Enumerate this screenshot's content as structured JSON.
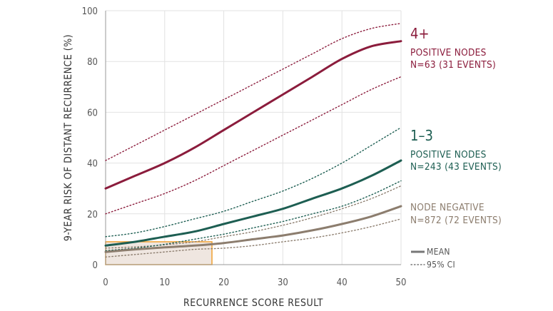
{
  "chart_data": {
    "type": "line",
    "xlabel": "RECURRENCE SCORE RESULT",
    "ylabel": "9-YEAR RISK OF DISTANT RECURRENCE (%)",
    "xlim": [
      0,
      50
    ],
    "ylim": [
      0,
      100
    ],
    "xticks": [
      "0",
      "10",
      "20",
      "30",
      "40",
      "50"
    ],
    "yticks": [
      "0",
      "20",
      "40",
      "60",
      "80",
      "100"
    ],
    "x": [
      0,
      5,
      10,
      15,
      20,
      25,
      30,
      35,
      40,
      45,
      50
    ],
    "highlight": {
      "x_range": [
        0,
        18
      ],
      "y_range": [
        0,
        9
      ],
      "color": "#f0a030",
      "fill": "#efe6e0"
    },
    "series": [
      {
        "id": "n4",
        "name": "4+ POSITIVE NODES",
        "label_big": "4+",
        "label_line1": "POSITIVE NODES",
        "label_line2": "N=63 (31 EVENTS)",
        "color": "#8b1c3c",
        "mean": [
          30,
          35,
          40,
          46,
          53,
          60,
          67,
          74,
          81,
          86,
          88
        ],
        "ci_upper": [
          41,
          47,
          53,
          59,
          65,
          71,
          77,
          83,
          89,
          93,
          95
        ],
        "ci_lower": [
          20,
          24,
          28,
          33,
          39,
          45,
          51,
          57,
          63,
          69,
          74
        ]
      },
      {
        "id": "n13",
        "name": "1-3 POSITIVE NODES",
        "label_big": "1–3",
        "label_line1": "POSITIVE NODES",
        "label_line2": "N=243 (43 EVENTS)",
        "color": "#1d5e52",
        "mean": [
          7.5,
          9,
          11,
          13,
          16,
          19,
          22,
          26,
          30,
          35,
          41
        ],
        "ci_upper": [
          11,
          12.5,
          15,
          18,
          21,
          25,
          29,
          34,
          40,
          47,
          54
        ],
        "ci_lower": [
          5.5,
          6.5,
          8,
          10,
          12,
          14.5,
          17,
          20,
          23,
          27.5,
          33
        ]
      },
      {
        "id": "nneg",
        "name": "NODE NEGATIVE",
        "label_line1": "NODE NEGATIVE",
        "label_line2": "N=872 (72 EVENTS)",
        "color": "#8c7d6e",
        "mean": [
          5,
          6,
          6.8,
          7.5,
          8.5,
          10,
          11.5,
          13.5,
          16,
          19,
          23
        ],
        "ci_upper": [
          6.5,
          7,
          7.8,
          9,
          11,
          13,
          15.5,
          18.5,
          22,
          26,
          31
        ],
        "ci_lower": [
          3,
          4,
          5,
          6,
          6.5,
          7.5,
          9,
          10.5,
          12.5,
          15,
          18
        ]
      }
    ],
    "legend": {
      "mean": "MEAN",
      "ci": "95% CI",
      "color": "#777777"
    }
  }
}
